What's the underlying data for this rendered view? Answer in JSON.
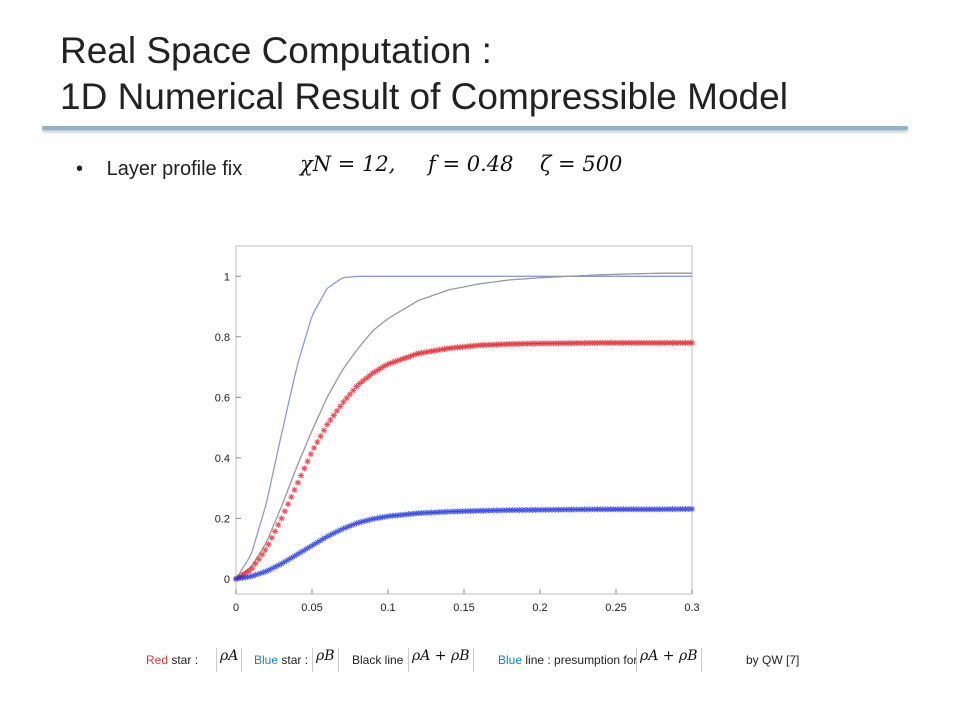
{
  "title": {
    "line1": "Real Space Computation :",
    "line2": "1D Numerical Result of Compressible Model"
  },
  "bullet": {
    "dot": "•",
    "text": "Layer profile fix",
    "params": {
      "chiN": "χN = 12,",
      "f": "f = 0.48",
      "zeta": "ζ = 500"
    }
  },
  "legend": {
    "red_word": "Red",
    "red_rest": " star :",
    "red_symbol": "ρA",
    "blue_word": "Blue",
    "blue_rest": " star :",
    "blue_symbol": "ρB",
    "black_text": "Black line :",
    "black_symbol": "ρA + ρB",
    "blueline_word": "Blue",
    "blueline_rest": " line : presumption for",
    "blueline_symbol": "ρA + ρB",
    "credit": "by QW [7]"
  },
  "chart_data": {
    "type": "line",
    "title": "",
    "xlabel": "",
    "ylabel": "",
    "xlim": [
      0,
      0.3
    ],
    "ylim": [
      -0.05,
      1.1
    ],
    "xticks": [
      0,
      0.05,
      0.1,
      0.15,
      0.2,
      0.25,
      0.3
    ],
    "xtick_labels": [
      "0",
      "0.05",
      "0.1",
      "0.15",
      "0.2",
      "0.25",
      "0.3"
    ],
    "yticks": [
      0,
      0.2,
      0.4,
      0.6,
      0.8,
      1
    ],
    "ytick_labels": [
      "0",
      "0.2",
      "0.4",
      "0.6",
      "0.8",
      "1"
    ],
    "grid": false,
    "x": [
      0,
      0.01,
      0.02,
      0.03,
      0.04,
      0.05,
      0.06,
      0.07,
      0.08,
      0.09,
      0.1,
      0.12,
      0.14,
      0.16,
      0.18,
      0.2,
      0.22,
      0.24,
      0.26,
      0.28,
      0.3
    ],
    "series": [
      {
        "color": "#8a9bd9",
        "style": "line",
        "values": [
          0,
          0.08,
          0.25,
          0.48,
          0.7,
          0.87,
          0.96,
          0.995,
          1,
          1,
          1,
          1,
          1,
          1,
          1,
          1,
          1,
          1,
          1,
          1,
          1
        ]
      },
      {
        "color": "#999999",
        "style": "line",
        "values": [
          0,
          0.04,
          0.12,
          0.24,
          0.37,
          0.49,
          0.6,
          0.69,
          0.76,
          0.82,
          0.86,
          0.92,
          0.955,
          0.975,
          0.988,
          0.995,
          1,
          1.005,
          1.008,
          1.01,
          1.01
        ]
      },
      {
        "color": "#e8141e",
        "style": "stars",
        "values": [
          0,
          0.03,
          0.1,
          0.2,
          0.31,
          0.42,
          0.51,
          0.58,
          0.64,
          0.68,
          0.71,
          0.745,
          0.762,
          0.772,
          0.776,
          0.778,
          0.779,
          0.78,
          0.78,
          0.78,
          0.78
        ]
      },
      {
        "color": "#1a2ee8",
        "style": "stars",
        "values": [
          0,
          0.008,
          0.025,
          0.05,
          0.08,
          0.11,
          0.14,
          0.165,
          0.185,
          0.198,
          0.207,
          0.217,
          0.222,
          0.225,
          0.227,
          0.228,
          0.229,
          0.23,
          0.23,
          0.23,
          0.231
        ]
      }
    ]
  }
}
